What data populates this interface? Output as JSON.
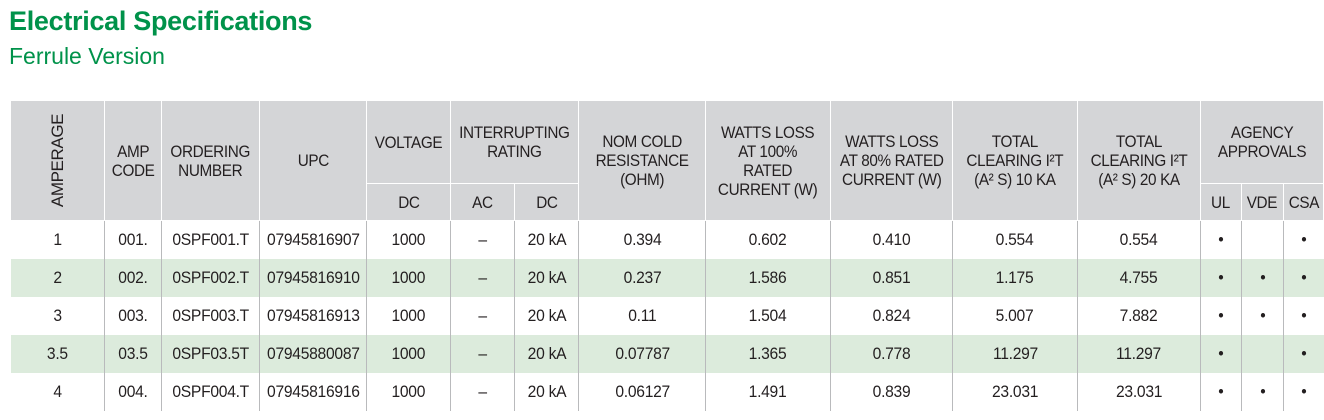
{
  "title": "Electrical Specifications",
  "subtitle": "Ferrule Version",
  "headers": {
    "amperage": "AMPERAGE",
    "amp_code": "AMP CODE",
    "ordering_number": "ORDERING NUMBER",
    "upc": "UPC",
    "voltage": "VOLTAGE",
    "voltage_dc": "DC",
    "interrupting_rating": "INTERRUPTING RATING",
    "ir_ac": "AC",
    "ir_dc": "DC",
    "nom_cold_resistance": "NOM COLD RESISTANCE (ohm)",
    "watts_loss_100": "WATTS LOSS AT 100% RATED CURRENT (W)",
    "watts_loss_80": "WATTS LOSS AT 80% RATED CURRENT (W)",
    "clearing_10ka": "TOTAL CLEARING I²t (A² s) 10 kA",
    "clearing_20ka": "TOTAL CLEARING I²t (A² s) 20 kA",
    "agency_approvals": "AGENCY APPROVALS",
    "ul": "UL",
    "vde": "VDE",
    "csa": "CSA"
  },
  "rows": [
    {
      "amperage": "1",
      "amp_code": "001.",
      "ordering_number": "0SPF001.T",
      "upc": "07945816907",
      "voltage_dc": "1000",
      "ir_ac": "–",
      "ir_dc": "20 kA",
      "resistance": "0.394",
      "watts_100": "0.602",
      "watts_80": "0.410",
      "clearing_10ka": "0.554",
      "clearing_20ka": "0.554",
      "ul": "•",
      "vde": "",
      "csa": "•"
    },
    {
      "amperage": "2",
      "amp_code": "002.",
      "ordering_number": "0SPF002.T",
      "upc": "07945816910",
      "voltage_dc": "1000",
      "ir_ac": "–",
      "ir_dc": "20 kA",
      "resistance": "0.237",
      "watts_100": "1.586",
      "watts_80": "0.851",
      "clearing_10ka": "1.175",
      "clearing_20ka": "4.755",
      "ul": "•",
      "vde": "•",
      "csa": "•"
    },
    {
      "amperage": "3",
      "amp_code": "003.",
      "ordering_number": "0SPF003.T",
      "upc": "07945816913",
      "voltage_dc": "1000",
      "ir_ac": "–",
      "ir_dc": "20 kA",
      "resistance": "0.11",
      "watts_100": "1.504",
      "watts_80": "0.824",
      "clearing_10ka": "5.007",
      "clearing_20ka": "7.882",
      "ul": "•",
      "vde": "•",
      "csa": "•"
    },
    {
      "amperage": "3.5",
      "amp_code": "03.5",
      "ordering_number": "0SPF03.5T",
      "upc": "07945880087",
      "voltage_dc": "1000",
      "ir_ac": "–",
      "ir_dc": "20 kA",
      "resistance": "0.07787",
      "watts_100": "1.365",
      "watts_80": "0.778",
      "clearing_10ka": "11.297",
      "clearing_20ka": "11.297",
      "ul": "•",
      "vde": "",
      "csa": "•"
    },
    {
      "amperage": "4",
      "amp_code": "004.",
      "ordering_number": "0SPF004.T",
      "upc": "07945816916",
      "voltage_dc": "1000",
      "ir_ac": "–",
      "ir_dc": "20 kA",
      "resistance": "0.06127",
      "watts_100": "1.491",
      "watts_80": "0.839",
      "clearing_10ka": "23.031",
      "clearing_20ka": "23.031",
      "ul": "•",
      "vde": "•",
      "csa": "•"
    }
  ]
}
